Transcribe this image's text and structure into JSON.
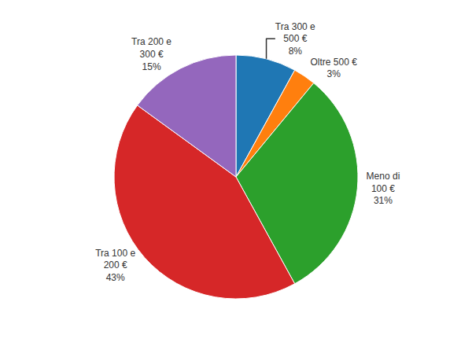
{
  "chart_data": {
    "type": "pie",
    "categories": [
      "Tra 300 e\n500 €\n8%",
      "Oltre 500 €\n3%",
      "Meno di\n100 €\n31%",
      "Tra 100 e\n200 €\n43%",
      "Tra 200 e\n300 €\n15%"
    ],
    "values": [
      8,
      3,
      31,
      43,
      15
    ]
  }
}
